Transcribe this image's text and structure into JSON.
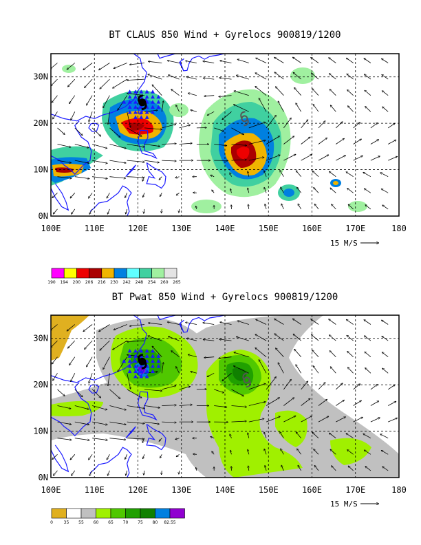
{
  "chart_data": [
    {
      "type": "heatmap",
      "title": "BT CLAUS 850 Wind + Gyrelocs 900819/1200",
      "variable": "CLAUS brightness temperature",
      "overlay": "850 hPa wind vectors + gyre locations",
      "x_ticks": [
        "100E",
        "110E",
        "120E",
        "130E",
        "140E",
        "150E",
        "160E",
        "170E",
        "180"
      ],
      "y_ticks": [
        "30N",
        "20N",
        "10N",
        "0N"
      ],
      "xlim": [
        100,
        180
      ],
      "ylim": [
        0,
        35
      ],
      "grid": true,
      "reference_vector_label": "15 M/S",
      "colorbar": {
        "labels": [
          "190",
          "194",
          "200",
          "206",
          "216",
          "230",
          "242",
          "248",
          "254",
          "260",
          "265"
        ],
        "colors": [
          "#ff00ff",
          "#ffff00",
          "#ee0000",
          "#aa0000",
          "#f0b400",
          "#0080e0",
          "#60ffff",
          "#40d0a0",
          "#a0f0a0",
          "#e4e4e4"
        ]
      },
      "gyres": [
        {
          "symbol": "typhoon",
          "lon": 121,
          "lat": 24.5,
          "color": "#000000"
        },
        {
          "symbol": "storm",
          "lon": 144.5,
          "lat": 21,
          "color": "#555555"
        }
      ]
    },
    {
      "type": "heatmap",
      "title": "BT Pwat 850 Wind + Gyrelocs 900819/1200",
      "variable": "Precipitable water",
      "overlay": "850 hPa wind vectors + gyre locations",
      "x_ticks": [
        "100E",
        "110E",
        "120E",
        "130E",
        "140E",
        "150E",
        "160E",
        "170E",
        "180"
      ],
      "y_ticks": [
        "30N",
        "20N",
        "10N",
        "0N"
      ],
      "xlim": [
        100,
        180
      ],
      "ylim": [
        0,
        35
      ],
      "grid": true,
      "reference_vector_label": "15 M/S",
      "colorbar": {
        "labels": [
          "0",
          "35",
          "55",
          "60",
          "65",
          "70",
          "75",
          "80",
          "82.55"
        ],
        "colors": [
          "#e0b020",
          "#ffffff",
          "#c0c0c0",
          "#a0f000",
          "#50c800",
          "#20a000",
          "#108000",
          "#0080e0",
          "#9000d0"
        ]
      },
      "gyres": [
        {
          "symbol": "typhoon",
          "lon": 121,
          "lat": 25,
          "color": "#000000"
        },
        {
          "symbol": "storm",
          "lon": 145,
          "lat": 21,
          "color": "#555555"
        }
      ]
    }
  ]
}
